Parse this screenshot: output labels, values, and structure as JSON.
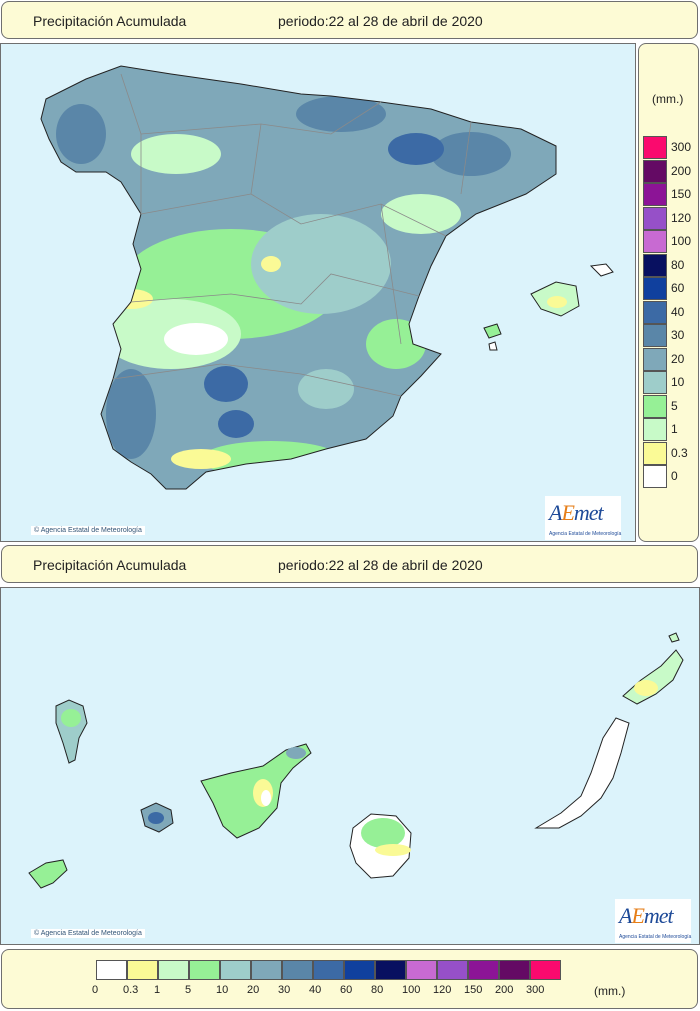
{
  "top": {
    "title_left": "Precipitación Acumulada",
    "title_right": "periodo:22 al 28 de abril de 2020",
    "copyright": "© Agencia Estatal de Meteorología"
  },
  "bottom": {
    "title_left": "Precipitación Acumulada",
    "title_right": "periodo:22 al 28 de abril de 2020",
    "copyright": "© Agencia Estatal de Meteorología"
  },
  "logo": {
    "word_a": "A",
    "word_e": "E",
    "word_rest": "met",
    "subtitle": "Agencia Estatal de Meteorología"
  },
  "legend": {
    "unit": "(mm.)",
    "values": [
      "0",
      "0.3",
      "1",
      "5",
      "10",
      "20",
      "30",
      "40",
      "60",
      "80",
      "100",
      "120",
      "150",
      "200",
      "300"
    ],
    "colors": [
      "#ffffff",
      "#fafa96",
      "#c8fac8",
      "#96f096",
      "#9ecdca",
      "#7fa8b9",
      "#5a86a8",
      "#3c6aa5",
      "#10409e",
      "#081060",
      "#c86ad2",
      "#9650c8",
      "#8c1496",
      "#640a64",
      "#fa0a6e"
    ]
  },
  "icons": {
    "copyright": "copyright-icon",
    "logo": "aemet-logo-icon"
  }
}
